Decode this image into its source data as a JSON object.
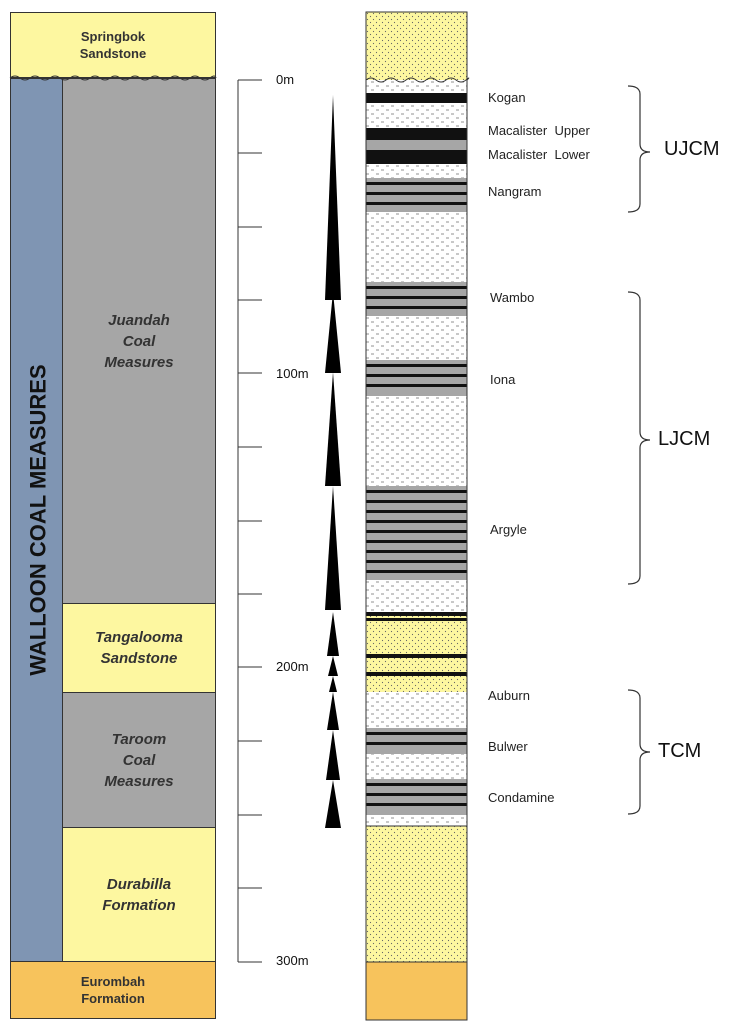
{
  "formations": {
    "springbok": [
      "Springbok",
      "Sandstone"
    ],
    "walloon": "WALLOON COAL MEASURES",
    "juandah": [
      "Juandah",
      "Coal",
      "Measures"
    ],
    "tangalooma": [
      "Tangalooma",
      "Sandstone"
    ],
    "taroom": [
      "Taroom",
      "Coal",
      "Measures"
    ],
    "durabilla": [
      "Durabilla",
      "Formation"
    ],
    "eurombah": [
      "Eurombah",
      "Formation"
    ]
  },
  "depth_labels": [
    "0m",
    "100m",
    "200m",
    "300m"
  ],
  "units": [
    "Kogan",
    "Macalister  Upper",
    "Macalister  Lower",
    "Nangram",
    "Wambo",
    "Iona",
    "Argyle",
    "Auburn",
    "Bulwer",
    "Condamine"
  ],
  "groups": [
    "UJCM",
    "LJCM",
    "TCM"
  ],
  "colors": {
    "sandstone": "#fdf7a0",
    "coal_measures": "#a6a6a6",
    "walloon": "#7f95b3",
    "eurombah": "#f7c35c",
    "coal_seam": "#111111"
  }
}
